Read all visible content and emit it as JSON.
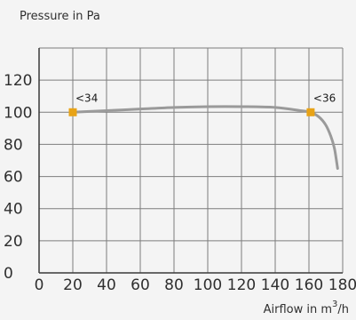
{
  "chart_data": {
    "type": "line",
    "title": "",
    "ylabel": "Pressure in Pa",
    "xlabel": "Airflow in m",
    "xlabel_sup": "3",
    "xlabel_suffix": "/h",
    "xlim": [
      0,
      180
    ],
    "ylim": [
      0,
      140
    ],
    "xticks": [
      0,
      20,
      40,
      60,
      80,
      100,
      120,
      140,
      160,
      180
    ],
    "yticks": [
      0,
      20,
      40,
      60,
      80,
      100,
      120
    ],
    "grid": true,
    "series": [
      {
        "color": "#9a9a9a",
        "x": [
          20,
          40,
          60,
          80,
          100,
          120,
          140,
          155,
          161,
          166,
          170,
          173,
          175,
          176,
          177
        ],
        "y": [
          100,
          101,
          102,
          103,
          103.5,
          103.5,
          103,
          101,
          100,
          97,
          92,
          85,
          78,
          72,
          65
        ]
      }
    ],
    "markers": [
      {
        "label": "<34",
        "x": 20,
        "y": 100,
        "color": "#e8a317"
      },
      {
        "label": "<36",
        "x": 161,
        "y": 100,
        "color": "#e8a317"
      }
    ]
  }
}
